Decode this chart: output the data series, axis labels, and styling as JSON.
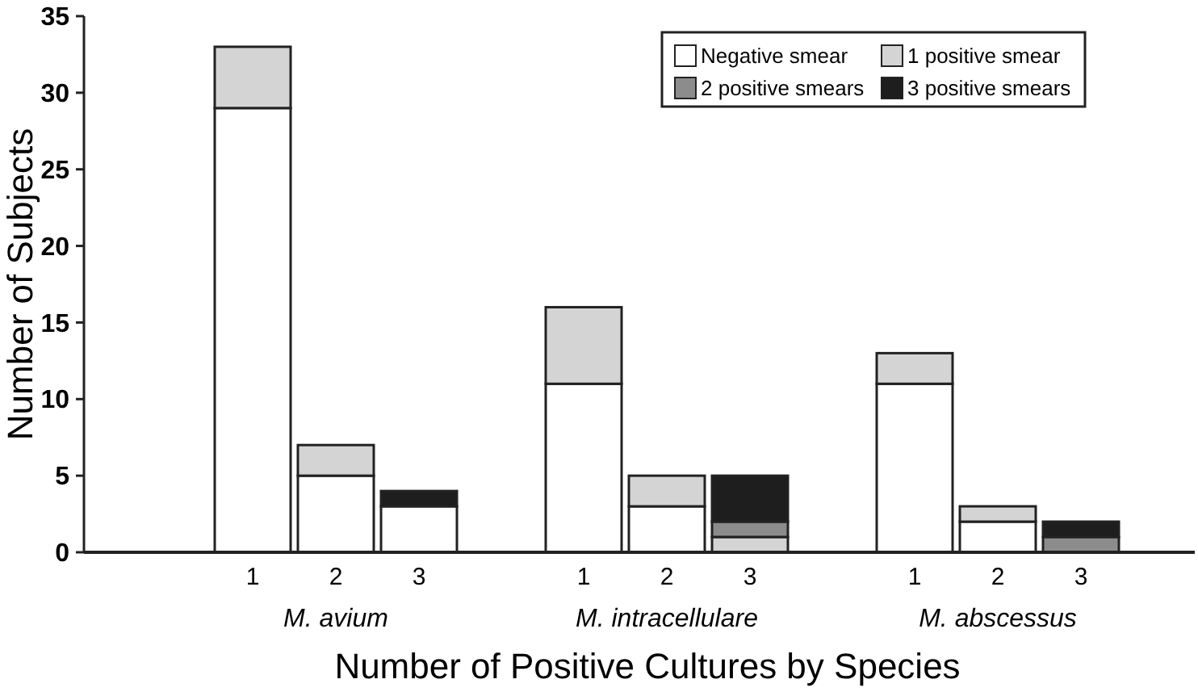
{
  "chart_data": {
    "type": "bar",
    "stacked": true,
    "xlabel": "Number of Positive Cultures by Species",
    "ylabel": "Number of Subjects",
    "categories": [
      "1",
      "2",
      "3",
      "1",
      "2",
      "3",
      "1",
      "2",
      "3"
    ],
    "annotations": [
      "M. avium",
      "M. intracellulare",
      "M. abscessus"
    ],
    "series": [
      {
        "name": "Negative smear",
        "color": "#ffffff",
        "values": [
          29,
          5,
          3,
          11,
          3,
          0,
          11,
          2,
          0
        ]
      },
      {
        "name": "1 positive smear",
        "color": "#d4d4d4",
        "values": [
          4,
          2,
          0,
          5,
          2,
          1,
          2,
          1,
          0
        ]
      },
      {
        "name": "2 positive smears",
        "color": "#8c8c8c",
        "values": [
          0,
          0,
          0,
          0,
          0,
          1,
          0,
          0,
          1
        ]
      },
      {
        "name": "3 positive smears",
        "color": "#1e1e1e",
        "values": [
          0,
          0,
          1,
          0,
          0,
          3,
          0,
          0,
          1
        ]
      }
    ],
    "ylim": [
      0,
      35
    ],
    "yticks": [
      0,
      5,
      10,
      15,
      20,
      25,
      30,
      35
    ],
    "grid": false,
    "legend": "top right"
  }
}
